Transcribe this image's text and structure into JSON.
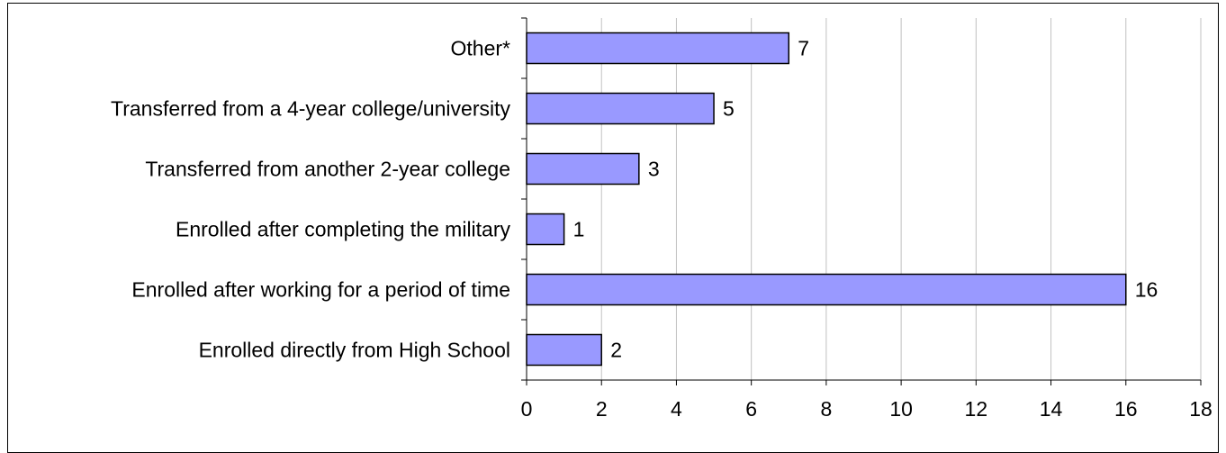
{
  "chart_data": {
    "type": "bar",
    "orientation": "horizontal",
    "categories": [
      "Other*",
      "Transferred from a 4-year college/university",
      "Transferred from another 2-year college",
      "Enrolled after completing the military",
      "Enrolled after working for a period of time",
      "Enrolled directly from High School"
    ],
    "values": [
      7,
      5,
      3,
      1,
      16,
      2
    ],
    "data_labels": [
      "7",
      "5",
      "3",
      "1",
      "16",
      "2"
    ],
    "xlim": [
      0,
      18
    ],
    "x_ticks": [
      0,
      2,
      4,
      6,
      8,
      10,
      12,
      14,
      16,
      18
    ],
    "x_tick_labels": [
      "0",
      "2",
      "4",
      "6",
      "8",
      "10",
      "12",
      "14",
      "16",
      "18"
    ],
    "grid": "vertical",
    "legend": "none",
    "title": "",
    "xlabel": "",
    "ylabel": ""
  },
  "colors": {
    "bar_fill": "#9999FF",
    "bar_stroke": "#000000",
    "grid": "#C0C0C0",
    "axis": "#000000"
  }
}
